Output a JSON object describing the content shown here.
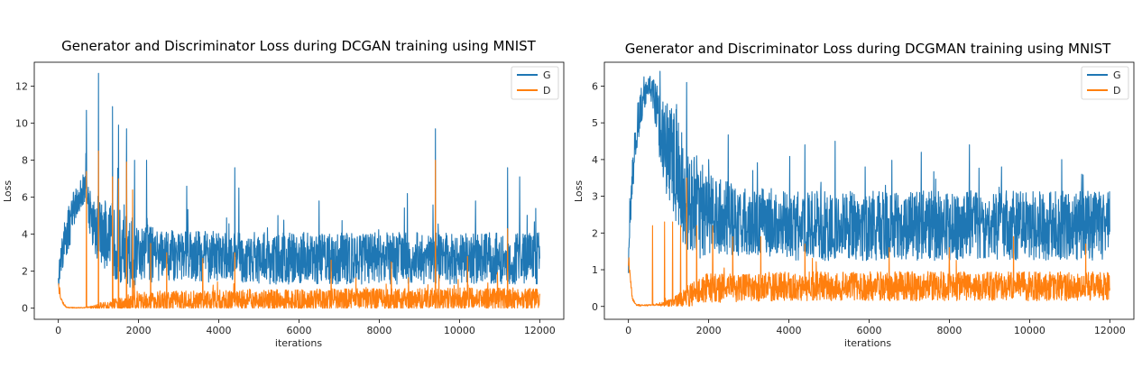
{
  "colors": {
    "G": "#1f77b4",
    "D": "#ff7f0e",
    "frame": "#000000"
  },
  "chart_data": [
    {
      "type": "line",
      "title": "Generator and Discriminator Loss during DCGAN training using MNIST",
      "xlabel": "iterations",
      "ylabel": "Loss",
      "xlim": [
        -600,
        12600
      ],
      "ylim": [
        -0.6,
        13.3
      ],
      "xticks": [
        0,
        2000,
        4000,
        6000,
        8000,
        10000,
        12000
      ],
      "xtick_labels": [
        "0",
        "2000",
        "4000",
        "6000",
        "8000",
        "10000",
        "12000"
      ],
      "yticks": [
        0,
        2,
        4,
        6,
        8,
        10,
        12
      ],
      "ytick_labels": [
        "0",
        "2",
        "4",
        "6",
        "8",
        "10",
        "12"
      ],
      "grid": false,
      "legend_position": "top-right",
      "series": [
        {
          "name": "G",
          "x": [
            0,
            100,
            200,
            300,
            400,
            500,
            600,
            700,
            800,
            900,
            1000,
            1100,
            1200,
            1300,
            1400,
            1500,
            1600,
            1700,
            1800,
            1900,
            2000,
            2500,
            3000,
            3500,
            4000,
            4500,
            5000,
            5500,
            6000,
            6500,
            7000,
            7500,
            8000,
            8500,
            9000,
            9500,
            10000,
            10500,
            11000,
            11500,
            12000
          ],
          "values": [
            1.5,
            3.0,
            4.0,
            4.6,
            5.5,
            6.0,
            6.2,
            6.3,
            5.0,
            4.6,
            4.3,
            4.1,
            3.9,
            3.8,
            3.6,
            3.4,
            3.3,
            3.2,
            3.1,
            3.0,
            3.0,
            2.9,
            2.9,
            2.8,
            2.8,
            2.8,
            2.7,
            2.7,
            2.7,
            2.7,
            2.7,
            2.7,
            2.7,
            2.7,
            2.7,
            2.7,
            2.7,
            2.7,
            2.7,
            2.7,
            2.7
          ],
          "band": [
            0.5,
            1.0,
            1.2,
            1.2,
            1.0,
            0.8,
            0.8,
            1.0,
            1.4,
            1.6,
            1.8,
            1.9,
            2.0,
            2.0,
            2.0,
            2.0,
            2.0,
            2.0,
            2.0,
            2.0,
            1.6,
            1.5,
            1.4,
            1.4,
            1.4,
            1.4,
            1.4,
            1.4,
            1.4,
            1.4,
            1.4,
            1.4,
            1.4,
            1.4,
            1.4,
            1.4,
            1.4,
            1.4,
            1.4,
            1.4,
            1.4
          ],
          "spikes": [
            [
              700,
              10.7
            ],
            [
              1000,
              12.7
            ],
            [
              1350,
              10.9
            ],
            [
              1500,
              9.9
            ],
            [
              1700,
              9.7
            ],
            [
              1900,
              8.0
            ],
            [
              2200,
              8.0
            ],
            [
              4400,
              7.6
            ],
            [
              4500,
              6.5
            ],
            [
              9400,
              9.7
            ],
            [
              11200,
              7.6
            ],
            [
              11500,
              7.1
            ],
            [
              11900,
              5.4
            ],
            [
              3200,
              6.6
            ],
            [
              6500,
              5.8
            ],
            [
              8700,
              6.2
            ],
            [
              10400,
              5.8
            ]
          ]
        },
        {
          "name": "D",
          "x": [
            0,
            100,
            200,
            300,
            400,
            500,
            600,
            700,
            800,
            900,
            1000,
            1100,
            1200,
            1300,
            1400,
            1500,
            1600,
            1700,
            1800,
            1900,
            2000,
            2500,
            3000,
            3500,
            4000,
            4500,
            5000,
            5500,
            6000,
            6500,
            7000,
            7500,
            8000,
            8500,
            9000,
            9500,
            10000,
            10500,
            11000,
            11500,
            12000
          ],
          "values": [
            1.2,
            0.3,
            0.05,
            0.03,
            0.03,
            0.03,
            0.03,
            0.04,
            0.05,
            0.06,
            0.1,
            0.12,
            0.14,
            0.15,
            0.17,
            0.2,
            0.22,
            0.25,
            0.28,
            0.3,
            0.32,
            0.34,
            0.36,
            0.38,
            0.4,
            0.41,
            0.42,
            0.43,
            0.44,
            0.45,
            0.46,
            0.47,
            0.48,
            0.48,
            0.49,
            0.5,
            0.5,
            0.5,
            0.5,
            0.5,
            0.5
          ],
          "band": [
            0.3,
            0.1,
            0.02,
            0.02,
            0.02,
            0.02,
            0.02,
            0.03,
            0.05,
            0.1,
            0.15,
            0.2,
            0.25,
            0.3,
            0.35,
            0.4,
            0.45,
            0.5,
            0.55,
            0.6,
            0.6,
            0.6,
            0.6,
            0.6,
            0.6,
            0.6,
            0.6,
            0.6,
            0.6,
            0.6,
            0.6,
            0.6,
            0.6,
            0.6,
            0.6,
            0.6,
            0.6,
            0.6,
            0.6,
            0.6,
            0.6
          ],
          "spikes": [
            [
              700,
              7.4
            ],
            [
              1000,
              8.5
            ],
            [
              1350,
              7.1
            ],
            [
              1500,
              7.0
            ],
            [
              1700,
              7.9
            ],
            [
              1850,
              6.4
            ],
            [
              2300,
              3.5
            ],
            [
              2700,
              3.0
            ],
            [
              4400,
              3.0
            ],
            [
              9400,
              8.0
            ],
            [
              11200,
              4.3
            ],
            [
              3600,
              2.7
            ],
            [
              6800,
              2.6
            ],
            [
              8300,
              2.5
            ],
            [
              10200,
              2.8
            ]
          ]
        }
      ]
    },
    {
      "type": "line",
      "title": "Generator and Discriminator Loss during DCGMAN training using MNIST",
      "xlabel": "iterations",
      "ylabel": "Loss",
      "xlim": [
        -600,
        12600
      ],
      "ylim": [
        -0.35,
        6.65
      ],
      "xticks": [
        0,
        2000,
        4000,
        6000,
        8000,
        10000,
        12000
      ],
      "xtick_labels": [
        "0",
        "2000",
        "4000",
        "6000",
        "8000",
        "10000",
        "12000"
      ],
      "yticks": [
        0,
        1,
        2,
        3,
        4,
        5,
        6
      ],
      "ytick_labels": [
        "0",
        "1",
        "2",
        "3",
        "4",
        "5",
        "6"
      ],
      "grid": false,
      "legend_position": "top-right",
      "series": [
        {
          "name": "G",
          "x": [
            0,
            100,
            200,
            300,
            400,
            500,
            600,
            700,
            800,
            900,
            1000,
            1100,
            1200,
            1300,
            1400,
            1500,
            1600,
            1700,
            1800,
            1900,
            2000,
            2500,
            3000,
            3500,
            4000,
            4500,
            5000,
            5500,
            6000,
            6500,
            7000,
            7500,
            8000,
            8500,
            9000,
            9500,
            10000,
            10500,
            11000,
            11500,
            12000
          ],
          "values": [
            1.2,
            3.5,
            4.8,
            5.4,
            5.8,
            6.0,
            5.9,
            5.4,
            4.8,
            4.5,
            4.2,
            4.0,
            3.8,
            3.5,
            3.2,
            2.9,
            2.8,
            2.7,
            2.6,
            2.6,
            2.5,
            2.4,
            2.3,
            2.3,
            2.2,
            2.2,
            2.2,
            2.2,
            2.2,
            2.2,
            2.2,
            2.2,
            2.2,
            2.2,
            2.2,
            2.2,
            2.2,
            2.2,
            2.2,
            2.2,
            2.2
          ],
          "band": [
            0.3,
            0.6,
            0.6,
            0.5,
            0.4,
            0.3,
            0.4,
            0.7,
            1.0,
            1.2,
            1.4,
            1.5,
            1.6,
            1.6,
            1.6,
            1.5,
            1.4,
            1.3,
            1.3,
            1.2,
            1.1,
            1.0,
            0.95,
            0.95,
            0.95,
            0.95,
            0.95,
            0.95,
            0.95,
            0.95,
            0.95,
            0.95,
            0.95,
            0.95,
            0.95,
            0.95,
            0.95,
            0.95,
            0.95,
            0.95,
            0.95
          ],
          "spikes": [
            [
              500,
              6.2
            ],
            [
              1200,
              5.5
            ],
            [
              1450,
              6.1
            ],
            [
              1700,
              4.1
            ],
            [
              2000,
              4.0
            ],
            [
              4400,
              4.4
            ],
            [
              7300,
              4.2
            ],
            [
              8500,
              4.4
            ],
            [
              9300,
              3.8
            ],
            [
              10800,
              4.0
            ],
            [
              11300,
              3.6
            ],
            [
              3100,
              3.7
            ],
            [
              5900,
              3.8
            ]
          ]
        },
        {
          "name": "D",
          "x": [
            0,
            100,
            200,
            300,
            400,
            500,
            600,
            700,
            800,
            900,
            1000,
            1100,
            1200,
            1300,
            1400,
            1500,
            1600,
            1700,
            1800,
            1900,
            2000,
            2500,
            3000,
            3500,
            4000,
            4500,
            5000,
            5500,
            6000,
            6500,
            7000,
            7500,
            8000,
            8500,
            9000,
            9500,
            10000,
            10500,
            11000,
            11500,
            12000
          ],
          "values": [
            1.3,
            0.2,
            0.04,
            0.03,
            0.03,
            0.03,
            0.04,
            0.05,
            0.06,
            0.08,
            0.1,
            0.12,
            0.15,
            0.2,
            0.25,
            0.3,
            0.35,
            0.4,
            0.45,
            0.48,
            0.5,
            0.52,
            0.53,
            0.54,
            0.55,
            0.55,
            0.55,
            0.55,
            0.55,
            0.55,
            0.55,
            0.55,
            0.55,
            0.55,
            0.55,
            0.55,
            0.55,
            0.55,
            0.55,
            0.55,
            0.55
          ],
          "band": [
            0.2,
            0.05,
            0.02,
            0.02,
            0.02,
            0.02,
            0.02,
            0.03,
            0.05,
            0.08,
            0.1,
            0.12,
            0.15,
            0.2,
            0.25,
            0.3,
            0.33,
            0.36,
            0.38,
            0.4,
            0.4,
            0.4,
            0.4,
            0.4,
            0.4,
            0.4,
            0.4,
            0.4,
            0.4,
            0.4,
            0.4,
            0.4,
            0.4,
            0.4,
            0.4,
            0.4,
            0.4,
            0.4,
            0.4,
            0.4,
            0.4
          ],
          "spikes": [
            [
              600,
              2.2
            ],
            [
              900,
              2.3
            ],
            [
              1100,
              2.3
            ],
            [
              1300,
              2.2
            ],
            [
              1450,
              3.5
            ],
            [
              1700,
              2.2
            ],
            [
              2100,
              2.2
            ],
            [
              2600,
              1.9
            ],
            [
              3300,
              1.9
            ],
            [
              4400,
              1.7
            ],
            [
              6500,
              1.6
            ],
            [
              8000,
              1.6
            ],
            [
              9600,
              1.9
            ],
            [
              11400,
              1.7
            ]
          ]
        }
      ]
    }
  ]
}
